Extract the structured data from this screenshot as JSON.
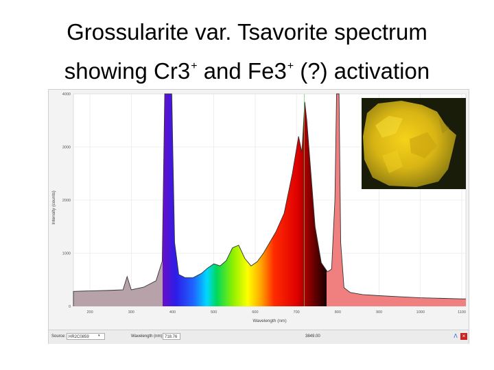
{
  "slide": {
    "title_line1": "Grossularite var. Tsavorite spectrum",
    "title_line2_a": "showing Cr3",
    "title_line2_sup1": "+",
    "title_line2_b": " and Fe3",
    "title_line2_sup2": "+",
    "title_line2_c": " (?) activation"
  },
  "chart_data": {
    "type": "area",
    "xlabel": "Wavelength (nm)",
    "ylabel": "Intensity (counts)",
    "xlim": [
      160,
      1110
    ],
    "ylim": [
      0,
      4000
    ],
    "xticks": [
      200,
      300,
      400,
      500,
      600,
      700,
      800,
      900,
      1000,
      1100
    ],
    "yticks": [
      0,
      1000,
      2000,
      3000,
      4000
    ],
    "grid": true,
    "marker_x": 718.76,
    "series": [
      {
        "x": [
          160,
          200,
          250,
          280,
          290,
          300,
          330,
          360,
          375,
          381,
          385,
          392,
          398,
          405,
          415,
          430,
          450,
          470,
          485,
          500,
          515,
          530,
          545,
          560,
          575,
          590,
          605,
          620,
          635,
          650,
          670,
          690,
          705,
          713,
          716,
          720,
          725,
          730,
          745,
          760,
          775,
          785,
          793,
          797,
          800,
          803,
          807,
          815,
          830,
          860,
          900,
          950,
          1000,
          1050,
          1100,
          1110
        ],
        "y": [
          280,
          290,
          300,
          310,
          560,
          310,
          360,
          480,
          850,
          4000,
          4000,
          4000,
          4000,
          1200,
          600,
          540,
          540,
          620,
          720,
          800,
          760,
          860,
          1100,
          1150,
          900,
          760,
          840,
          1000,
          1200,
          1400,
          1750,
          2500,
          3200,
          2900,
          3300,
          3850,
          3500,
          3000,
          1500,
          820,
          650,
          700,
          2000,
          4000,
          4000,
          4000,
          1200,
          350,
          260,
          220,
          200,
          180,
          160,
          150,
          140,
          140
        ]
      }
    ]
  },
  "ui": {
    "source_label": "Source:",
    "source_value": "HR2C0859",
    "wavelength_label": "Wavelength (nm):",
    "wavelength_value": "718.76",
    "readout": "3849.00"
  },
  "colors": {
    "uv_fill": "#b8a2a9",
    "ir_fill": "#f08080",
    "violet_peak": "#6a10c8",
    "pink_peak": "#f08080",
    "marker": "#66cc66",
    "background": "#ffffff"
  },
  "photo": {
    "icon": "tsavorite-fluorescence-photo"
  }
}
